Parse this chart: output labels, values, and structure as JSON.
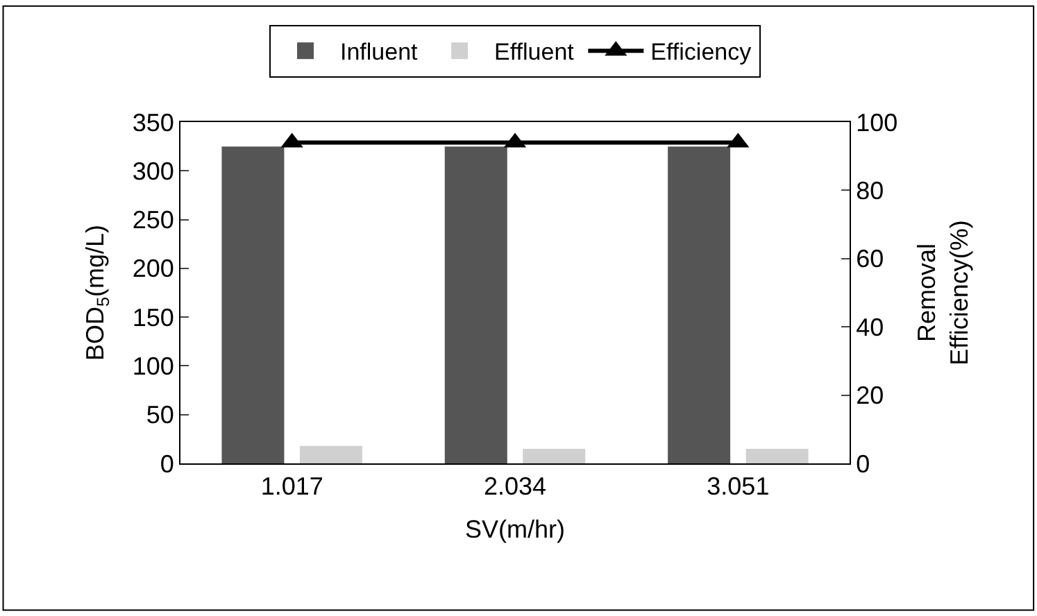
{
  "chart_data": {
    "type": "bar",
    "categories": [
      "1.017",
      "2.034",
      "3.051"
    ],
    "xlabel": "SV(m/hr)",
    "ylabel": "BOD$_{5}$(mg/L)",
    "y2label": "Removal Efficiency(%)",
    "series": [
      {
        "name": "Influent",
        "color": "#555555",
        "values": [
          325,
          325,
          325
        ]
      },
      {
        "name": "Effluent",
        "color": "#d0d0d0",
        "values": [
          18,
          15,
          15
        ]
      },
      {
        "name": "Efficiency",
        "type": "line",
        "axis": "y2",
        "color": "#000000",
        "marker": "triangle",
        "values": [
          94,
          94,
          94
        ]
      }
    ],
    "ylim": [
      0,
      350
    ],
    "yticks": [
      0,
      50,
      100,
      150,
      200,
      250,
      300,
      350
    ],
    "y2lim": [
      0,
      100
    ],
    "y2ticks": [
      0,
      20,
      40,
      60,
      80,
      100
    ],
    "grid": false,
    "legend": "top"
  }
}
